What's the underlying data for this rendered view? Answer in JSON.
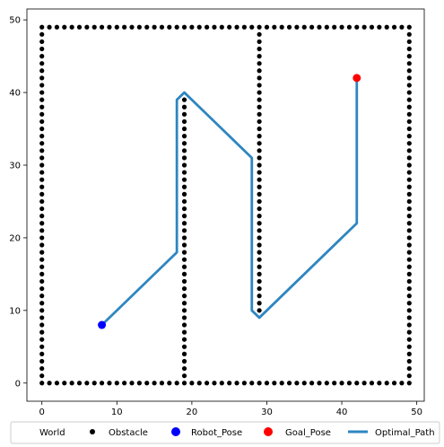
{
  "chart_data": {
    "type": "scatter",
    "xlim": [
      -2,
      51
    ],
    "ylim": [
      -2.5,
      51.5
    ],
    "xticks": [
      0,
      10,
      20,
      30,
      40,
      50
    ],
    "yticks": [
      0,
      10,
      20,
      30,
      40,
      50
    ],
    "grid": false,
    "legend": {
      "placement": "bottom",
      "entries": [
        {
          "label": "World",
          "marker": "none",
          "color": ""
        },
        {
          "label": "Obstacle",
          "marker": "dot",
          "color": "#000000"
        },
        {
          "label": "Robot_Pose",
          "marker": "circle",
          "color": "#0000ff"
        },
        {
          "label": "Goal_Pose",
          "marker": "circle",
          "color": "#ff0000"
        },
        {
          "label": "Optimal_Path",
          "marker": "line",
          "color": "#2e86c1"
        }
      ]
    },
    "obstacles": {
      "color": "#000000",
      "segments": [
        {
          "axis": "y",
          "fixed": 0,
          "from": 0,
          "to": 49
        },
        {
          "axis": "y",
          "fixed": 49,
          "from": 0,
          "to": 49
        },
        {
          "axis": "x",
          "fixed": 0,
          "from": 1,
          "to": 48
        },
        {
          "axis": "x",
          "fixed": 49,
          "from": 1,
          "to": 48
        },
        {
          "axis": "x",
          "fixed": 19,
          "from": 1,
          "to": 39
        },
        {
          "axis": "x",
          "fixed": 29,
          "from": 10,
          "to": 48
        }
      ]
    },
    "robot_pose": {
      "x": 8,
      "y": 8,
      "color": "#0000ff"
    },
    "goal_pose": {
      "x": 42,
      "y": 42,
      "color": "#ff0000"
    },
    "optimal_path": {
      "color": "#2e86c1",
      "points": [
        [
          8,
          8
        ],
        [
          18,
          18
        ],
        [
          18,
          39
        ],
        [
          19,
          40
        ],
        [
          28,
          31
        ],
        [
          28,
          10
        ],
        [
          29,
          9
        ],
        [
          42,
          22
        ],
        [
          42,
          42
        ]
      ]
    }
  }
}
